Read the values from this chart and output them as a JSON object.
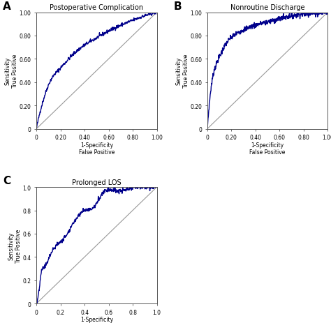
{
  "title_A": "Postoperative Complication",
  "title_B": "Nonroutine Discharge",
  "title_C": "Prolonged LOS",
  "xlabel": "1-Specificity\nFalse Positive",
  "ylabel": "Sensitivity\nTrue Positive",
  "label_A": "A",
  "label_B": "B",
  "label_C": "C",
  "curve_color": "#00008B",
  "diag_color": "#999999",
  "curve_linewidth": 1.0,
  "diag_linewidth": 0.8,
  "tick_labels_AB": [
    "0",
    "0.20",
    "0.40",
    "0.60",
    "0.80",
    "1.00"
  ],
  "tick_labels_C": [
    "0",
    "0.2",
    "0.4",
    "0.6",
    "0.8",
    "1.0"
  ],
  "tick_values": [
    0,
    0.2,
    0.4,
    0.6,
    0.8,
    1.0
  ],
  "xlim": [
    0,
    1.0
  ],
  "ylim": [
    0,
    1.0
  ],
  "background_color": "#ffffff"
}
